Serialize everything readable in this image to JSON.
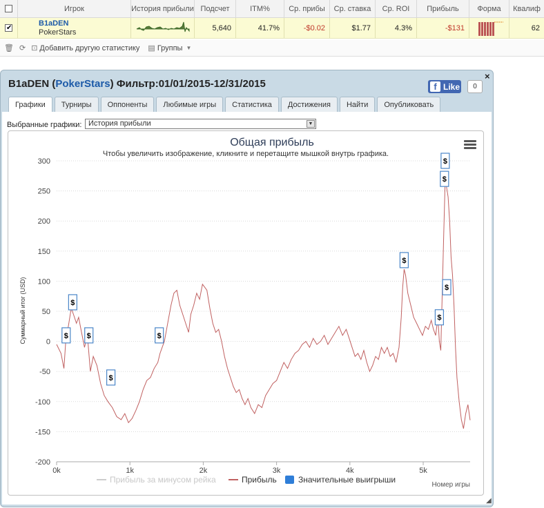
{
  "table": {
    "headers": [
      "Игрок",
      "История прибыли",
      "Подсчет",
      "ITM%",
      "Ср. прибы",
      "Ср. ставка",
      "Ср. ROI",
      "Прибыль",
      "Форма",
      "Квалиф"
    ],
    "row": {
      "player_name": "B1aDEN",
      "site": "PokerStars",
      "count": "5,640",
      "itm": "41.7%",
      "avg_profit": "-$0.02",
      "avg_stake": "$1.77",
      "avg_roi": "4.3%",
      "profit": "-$131",
      "qualif": "62"
    }
  },
  "toolbar": {
    "add_stat": "Добавить другую статистику",
    "groups": "Группы"
  },
  "popup": {
    "title_name": "B1aDEN (",
    "title_site": "PokerStars",
    "title_filter": ") Фильтр:01/01/2015-12/31/2015",
    "like_label": "Like",
    "like_count": "0",
    "close": "×",
    "tabs": [
      "Графики",
      "Турниры",
      "Оппоненты",
      "Любимые игры",
      "Статистика",
      "Достижения",
      "Найти",
      "Опубликовать"
    ],
    "select_label": "Выбранные графики:",
    "select_value": "История прибыли"
  },
  "chart_data": {
    "type": "line",
    "title": "Общая прибыль",
    "subtitle": "Чтобы увеличить изображение, кликните и перетащите мышкой внутрь графика.",
    "xlabel": "Номер игры",
    "ylabel": "Суммарный итог (USD)",
    "xlim": [
      0,
      5640
    ],
    "ylim": [
      -200,
      300
    ],
    "x_ticks": [
      "0k",
      "1k",
      "2k",
      "3k",
      "4k",
      "5k"
    ],
    "y_ticks": [
      300,
      250,
      200,
      150,
      100,
      50,
      0,
      -50,
      -100,
      -150,
      -200
    ],
    "legend": [
      "Прибыль за минусом рейка",
      "Прибыль",
      "Значительные выигрыши"
    ],
    "legend_colors": [
      "#cccccc",
      "#c06060",
      "#2f7ed8"
    ],
    "legend_placement": "bottom",
    "series": [
      {
        "name": "Прибыль",
        "points": [
          [
            0,
            -5
          ],
          [
            60,
            -20
          ],
          [
            100,
            -45
          ],
          [
            130,
            10
          ],
          [
            160,
            25
          ],
          [
            200,
            55
          ],
          [
            230,
            45
          ],
          [
            270,
            30
          ],
          [
            300,
            40
          ],
          [
            340,
            15
          ],
          [
            380,
            -10
          ],
          [
            420,
            10
          ],
          [
            460,
            -50
          ],
          [
            500,
            -25
          ],
          [
            550,
            -40
          ],
          [
            600,
            -70
          ],
          [
            650,
            -90
          ],
          [
            700,
            -100
          ],
          [
            760,
            -110
          ],
          [
            820,
            -125
          ],
          [
            880,
            -130
          ],
          [
            930,
            -120
          ],
          [
            980,
            -135
          ],
          [
            1030,
            -128
          ],
          [
            1080,
            -115
          ],
          [
            1130,
            -100
          ],
          [
            1180,
            -80
          ],
          [
            1230,
            -65
          ],
          [
            1280,
            -60
          ],
          [
            1330,
            -45
          ],
          [
            1380,
            -35
          ],
          [
            1410,
            -20
          ],
          [
            1440,
            -10
          ],
          [
            1470,
            0
          ],
          [
            1500,
            20
          ],
          [
            1530,
            40
          ],
          [
            1560,
            60
          ],
          [
            1600,
            80
          ],
          [
            1640,
            85
          ],
          [
            1680,
            60
          ],
          [
            1720,
            45
          ],
          [
            1760,
            30
          ],
          [
            1800,
            15
          ],
          [
            1830,
            45
          ],
          [
            1870,
            60
          ],
          [
            1910,
            80
          ],
          [
            1950,
            70
          ],
          [
            1990,
            95
          ],
          [
            2020,
            90
          ],
          [
            2050,
            85
          ],
          [
            2090,
            55
          ],
          [
            2130,
            30
          ],
          [
            2170,
            15
          ],
          [
            2210,
            20
          ],
          [
            2250,
            0
          ],
          [
            2290,
            -25
          ],
          [
            2330,
            -45
          ],
          [
            2370,
            -60
          ],
          [
            2410,
            -75
          ],
          [
            2450,
            -85
          ],
          [
            2490,
            -80
          ],
          [
            2530,
            -95
          ],
          [
            2570,
            -105
          ],
          [
            2610,
            -95
          ],
          [
            2650,
            -110
          ],
          [
            2700,
            -120
          ],
          [
            2750,
            -105
          ],
          [
            2800,
            -110
          ],
          [
            2850,
            -90
          ],
          [
            2900,
            -80
          ],
          [
            2950,
            -70
          ],
          [
            3000,
            -65
          ],
          [
            3050,
            -50
          ],
          [
            3100,
            -35
          ],
          [
            3150,
            -45
          ],
          [
            3200,
            -30
          ],
          [
            3250,
            -20
          ],
          [
            3300,
            -15
          ],
          [
            3350,
            -5
          ],
          [
            3400,
            0
          ],
          [
            3450,
            -10
          ],
          [
            3500,
            5
          ],
          [
            3550,
            -5
          ],
          [
            3600,
            0
          ],
          [
            3650,
            10
          ],
          [
            3700,
            -5
          ],
          [
            3750,
            5
          ],
          [
            3800,
            15
          ],
          [
            3850,
            25
          ],
          [
            3900,
            10
          ],
          [
            3950,
            20
          ],
          [
            3990,
            5
          ],
          [
            4030,
            -10
          ],
          [
            4070,
            -25
          ],
          [
            4110,
            -20
          ],
          [
            4150,
            -30
          ],
          [
            4190,
            -15
          ],
          [
            4230,
            -35
          ],
          [
            4270,
            -50
          ],
          [
            4310,
            -40
          ],
          [
            4350,
            -25
          ],
          [
            4390,
            -30
          ],
          [
            4430,
            -10
          ],
          [
            4470,
            -20
          ],
          [
            4510,
            -10
          ],
          [
            4550,
            -25
          ],
          [
            4590,
            -20
          ],
          [
            4630,
            -35
          ],
          [
            4670,
            -10
          ],
          [
            4700,
            40
          ],
          [
            4720,
            90
          ],
          [
            4740,
            120
          ],
          [
            4760,
            110
          ],
          [
            4790,
            80
          ],
          [
            4830,
            60
          ],
          [
            4870,
            40
          ],
          [
            4910,
            30
          ],
          [
            4950,
            20
          ],
          [
            4990,
            10
          ],
          [
            5030,
            25
          ],
          [
            5070,
            20
          ],
          [
            5110,
            35
          ],
          [
            5140,
            20
          ],
          [
            5170,
            10
          ],
          [
            5200,
            40
          ],
          [
            5220,
            0
          ],
          [
            5240,
            -15
          ],
          [
            5260,
            80
          ],
          [
            5280,
            180
          ],
          [
            5300,
            270
          ],
          [
            5320,
            255
          ],
          [
            5340,
            240
          ],
          [
            5360,
            200
          ],
          [
            5380,
            140
          ],
          [
            5400,
            110
          ],
          [
            5420,
            60
          ],
          [
            5440,
            -10
          ],
          [
            5460,
            -60
          ],
          [
            5490,
            -100
          ],
          [
            5520,
            -130
          ],
          [
            5550,
            -145
          ],
          [
            5580,
            -120
          ],
          [
            5610,
            -105
          ],
          [
            5640,
            -131
          ]
        ]
      }
    ],
    "big_win_markers": [
      [
        130,
        10
      ],
      [
        220,
        65
      ],
      [
        440,
        10
      ],
      [
        740,
        -60
      ],
      [
        1400,
        10
      ],
      [
        4740,
        135
      ],
      [
        5220,
        40
      ],
      [
        5290,
        270
      ],
      [
        5300,
        300
      ],
      [
        5320,
        90
      ]
    ],
    "marker_label": "$"
  }
}
